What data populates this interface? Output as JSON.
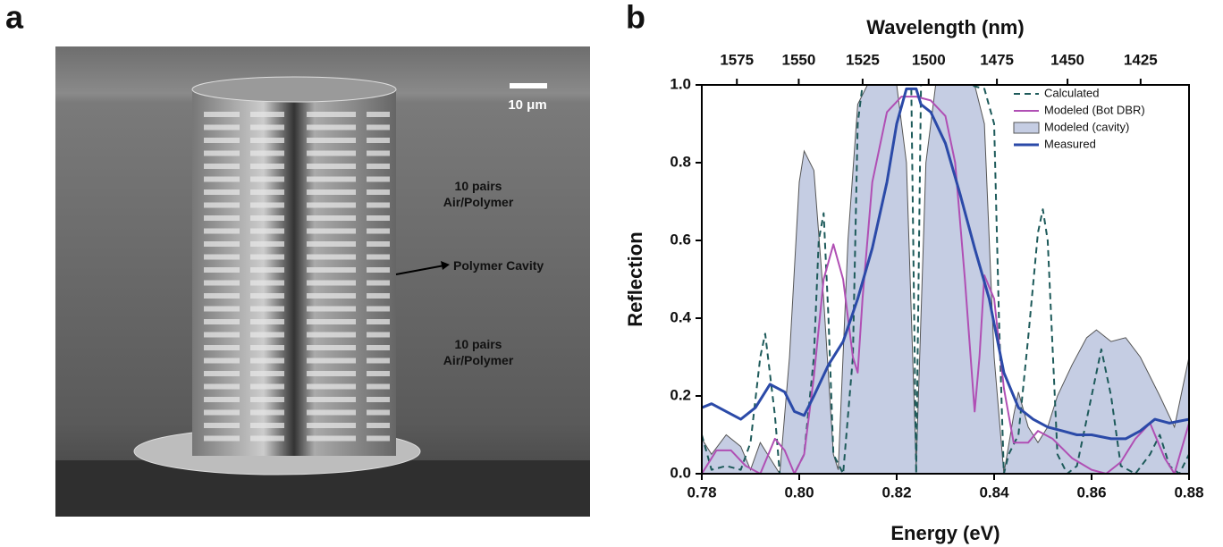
{
  "figure_a": {
    "panel_label": "a",
    "scale_bar": "10 μm",
    "annotations": [
      "10 pairs\nAir/Polymer",
      "Polymer Cavity",
      "10 pairs\nAir/Polymer"
    ]
  },
  "chart_data": {
    "type": "line",
    "panel_label": "b",
    "xlabel": "Energy (eV)",
    "ylabel": "Reflection",
    "x2label": "Wavelength (nm)",
    "xlim": [
      0.78,
      0.88
    ],
    "xticks": [
      {
        "value": 0.78,
        "label": "0.78"
      },
      {
        "value": 0.8,
        "label": "0.80"
      },
      {
        "value": 0.82,
        "label": "0.82"
      },
      {
        "value": 0.84,
        "label": "0.84"
      },
      {
        "value": 0.86,
        "label": "0.86"
      },
      {
        "value": 0.88,
        "label": "0.88"
      }
    ],
    "ylim": [
      0,
      1.0
    ],
    "yticks": [
      {
        "value": 0,
        "label": "0.0"
      },
      {
        "value": 0.2,
        "label": "0.2"
      },
      {
        "value": 0.4,
        "label": "0.4"
      },
      {
        "value": 0.6,
        "label": "0.6"
      },
      {
        "value": 0.8,
        "label": "0.8"
      },
      {
        "value": 1.0,
        "label": "1.0"
      }
    ],
    "x2ticks": [
      1575,
      1550,
      1525,
      1500,
      1475,
      1450,
      1425
    ],
    "legend": "upper right",
    "series": [
      {
        "name": "Calculated",
        "color": "#1d5a5a",
        "style": "dashed",
        "x": [
          0.78,
          0.782,
          0.785,
          0.788,
          0.79,
          0.792,
          0.793,
          0.795,
          0.796,
          0.799,
          0.801,
          0.803,
          0.804,
          0.805,
          0.806,
          0.807,
          0.809,
          0.811,
          0.812,
          0.813,
          0.823,
          0.824,
          0.825,
          0.835,
          0.838,
          0.84,
          0.841,
          0.842,
          0.843,
          0.845,
          0.847,
          0.849,
          0.85,
          0.851,
          0.853,
          0.855,
          0.857,
          0.86,
          0.862,
          0.864,
          0.866,
          0.869,
          0.872,
          0.874,
          0.876,
          0.878,
          0.88
        ],
        "values": [
          0.1,
          0.01,
          0.02,
          0.01,
          0.08,
          0.3,
          0.36,
          0.15,
          0.0,
          0.0,
          0.05,
          0.3,
          0.6,
          0.67,
          0.4,
          0.05,
          0.0,
          0.3,
          0.9,
          1.0,
          1.0,
          0.0,
          1.0,
          1.0,
          0.99,
          0.9,
          0.4,
          0.0,
          0.05,
          0.1,
          0.35,
          0.62,
          0.68,
          0.6,
          0.05,
          0.0,
          0.02,
          0.2,
          0.32,
          0.2,
          0.02,
          0.0,
          0.05,
          0.1,
          0.02,
          0.0,
          0.05
        ]
      },
      {
        "name": "Modeled (Bot DBR)",
        "color": "#b04fb4",
        "style": "line",
        "x": [
          0.78,
          0.783,
          0.786,
          0.789,
          0.792,
          0.795,
          0.797,
          0.799,
          0.801,
          0.803,
          0.805,
          0.807,
          0.809,
          0.811,
          0.812,
          0.813,
          0.815,
          0.818,
          0.821,
          0.824,
          0.827,
          0.83,
          0.832,
          0.834,
          0.836,
          0.837,
          0.838,
          0.84,
          0.842,
          0.844,
          0.847,
          0.849,
          0.852,
          0.856,
          0.86,
          0.863,
          0.866,
          0.869,
          0.872,
          0.875,
          0.877,
          0.88
        ],
        "values": [
          0.0,
          0.06,
          0.06,
          0.02,
          0.0,
          0.09,
          0.06,
          0.0,
          0.05,
          0.25,
          0.5,
          0.59,
          0.5,
          0.3,
          0.26,
          0.45,
          0.75,
          0.93,
          0.97,
          0.97,
          0.96,
          0.92,
          0.8,
          0.5,
          0.16,
          0.3,
          0.51,
          0.45,
          0.22,
          0.08,
          0.08,
          0.11,
          0.09,
          0.04,
          0.01,
          0.0,
          0.03,
          0.09,
          0.13,
          0.04,
          0.0,
          0.13
        ]
      },
      {
        "name": "Modeled (cavity)",
        "color": "#c5cde3",
        "style": "area",
        "x": [
          0.78,
          0.782,
          0.785,
          0.788,
          0.79,
          0.792,
          0.794,
          0.796,
          0.798,
          0.8,
          0.801,
          0.803,
          0.805,
          0.807,
          0.808,
          0.81,
          0.812,
          0.814,
          0.82,
          0.822,
          0.824,
          0.826,
          0.828,
          0.836,
          0.838,
          0.84,
          0.842,
          0.844,
          0.845,
          0.847,
          0.849,
          0.851,
          0.853,
          0.856,
          0.859,
          0.861,
          0.864,
          0.867,
          0.87,
          0.874,
          0.877,
          0.88
        ],
        "values": [
          0.09,
          0.05,
          0.1,
          0.07,
          0.01,
          0.08,
          0.04,
          0.0,
          0.3,
          0.75,
          0.83,
          0.78,
          0.45,
          0.05,
          0.01,
          0.6,
          0.95,
          1.0,
          1.0,
          0.8,
          0.02,
          0.8,
          1.0,
          1.0,
          0.9,
          0.3,
          0.0,
          0.15,
          0.21,
          0.12,
          0.08,
          0.12,
          0.2,
          0.28,
          0.35,
          0.37,
          0.34,
          0.35,
          0.3,
          0.2,
          0.12,
          0.3
        ]
      },
      {
        "name": "Measured",
        "color": "#2b4aa8",
        "style": "line",
        "x": [
          0.78,
          0.782,
          0.785,
          0.788,
          0.791,
          0.794,
          0.797,
          0.799,
          0.801,
          0.803,
          0.806,
          0.809,
          0.812,
          0.815,
          0.818,
          0.82,
          0.822,
          0.824,
          0.825,
          0.827,
          0.83,
          0.833,
          0.836,
          0.839,
          0.842,
          0.845,
          0.848,
          0.851,
          0.854,
          0.857,
          0.86,
          0.864,
          0.867,
          0.87,
          0.873,
          0.876,
          0.88
        ],
        "values": [
          0.17,
          0.18,
          0.16,
          0.14,
          0.17,
          0.23,
          0.21,
          0.16,
          0.15,
          0.2,
          0.28,
          0.34,
          0.45,
          0.58,
          0.75,
          0.9,
          0.99,
          0.99,
          0.95,
          0.93,
          0.85,
          0.72,
          0.58,
          0.45,
          0.26,
          0.17,
          0.14,
          0.12,
          0.11,
          0.1,
          0.1,
          0.09,
          0.09,
          0.11,
          0.14,
          0.13,
          0.14
        ]
      }
    ]
  }
}
